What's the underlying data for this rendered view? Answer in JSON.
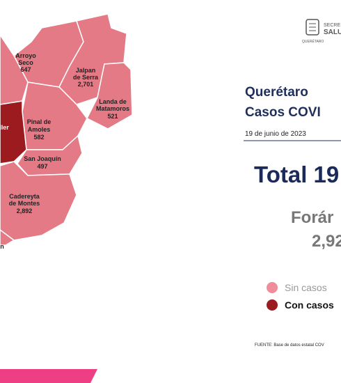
{
  "header": {
    "logo_line1": "SECRE",
    "logo_line2": "SALU",
    "logo_line3": "QUERÉTARO"
  },
  "map": {
    "regions": [
      {
        "name": [
          "Arroyo",
          "Seco"
        ],
        "cases": "647"
      },
      {
        "name": [
          "Jalpan",
          "de Serra"
        ],
        "cases": "2,701"
      },
      {
        "name": [
          "Landa de",
          "Matamoros"
        ],
        "cases": "521"
      },
      {
        "name": [
          "Pinal de",
          "Amoles"
        ],
        "cases": "582"
      },
      {
        "name": [
          "San Joaquín"
        ],
        "cases": "497"
      },
      {
        "name": [
          "Cadereyta",
          "de Montes"
        ],
        "cases": "2,892"
      },
      {
        "name": [
          "ller"
        ]
      },
      {
        "name": [
          "n"
        ]
      }
    ]
  },
  "panel": {
    "title": [
      "Querétaro",
      "Casos COVI"
    ],
    "date": "19 de junio de 2023",
    "total": "Total 19",
    "foreign_label": "Forár",
    "foreign_value": "2,92",
    "legend": [
      "Sin casos",
      "Con casos"
    ],
    "source": "FUENTE: Base de datos estatal COV"
  }
}
